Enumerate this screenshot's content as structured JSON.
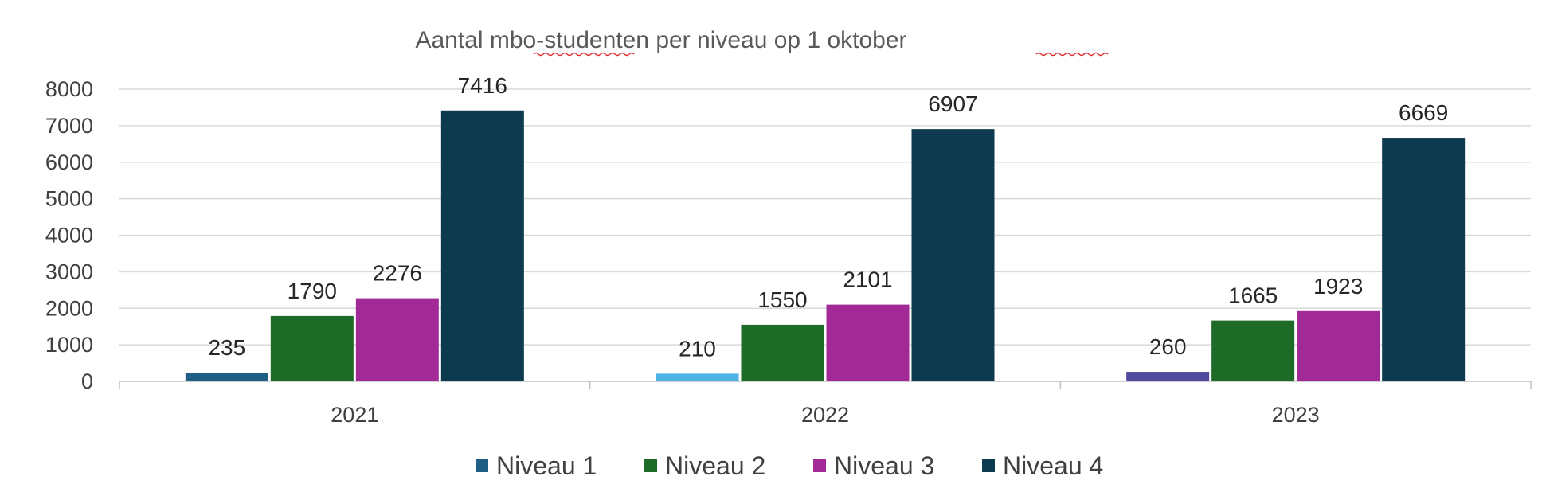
{
  "chart_data": {
    "type": "bar",
    "title": "Aantal mbo-studenten per niveau op 1 oktober",
    "xlabel": "",
    "ylabel": "",
    "categories": [
      "2021",
      "2022",
      "2023"
    ],
    "ylim": [
      0,
      8000
    ],
    "yticks": [
      0,
      1000,
      2000,
      3000,
      4000,
      5000,
      6000,
      7000,
      8000
    ],
    "grid": true,
    "legend_position": "bottom",
    "series": [
      {
        "name": "Niveau 1",
        "values": [
          235,
          210,
          260
        ],
        "colors": [
          "#1f5f86",
          "#4fb3e6",
          "#4f4a9e"
        ],
        "legend_color": "#1f5f86"
      },
      {
        "name": "Niveau 2",
        "values": [
          1790,
          1550,
          1665
        ],
        "colors": [
          "#1d6b26",
          "#1d6b26",
          "#1d6b26"
        ],
        "legend_color": "#1d6b26"
      },
      {
        "name": "Niveau 3",
        "values": [
          2276,
          2101,
          1923
        ],
        "colors": [
          "#a12a96",
          "#a12a96",
          "#a12a96"
        ],
        "legend_color": "#a12a96"
      },
      {
        "name": "Niveau 4",
        "values": [
          7416,
          6907,
          6669
        ],
        "colors": [
          "#0e3a4f",
          "#0e3a4f",
          "#0e3a4f"
        ],
        "legend_color": "#0e3a4f"
      }
    ]
  }
}
